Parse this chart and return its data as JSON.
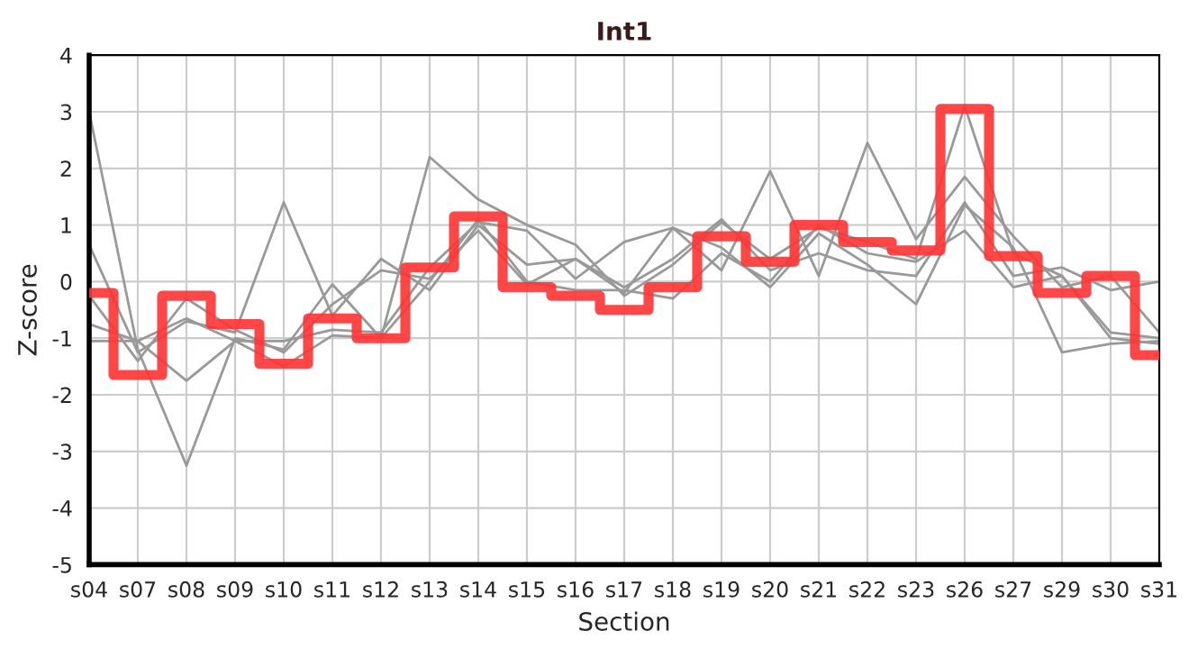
{
  "chart_data": {
    "type": "line",
    "title": "Int1",
    "xlabel": "Section",
    "ylabel": "Z-score",
    "categories": [
      "s04",
      "s07",
      "s08",
      "s09",
      "s10",
      "s11",
      "s12",
      "s13",
      "s14",
      "s15",
      "s16",
      "s17",
      "s18",
      "s19",
      "s20",
      "s21",
      "s22",
      "s23",
      "s26",
      "s27",
      "s29",
      "s30",
      "s31"
    ],
    "ylim": [
      -5,
      4
    ],
    "yticks": [
      -5,
      -4,
      -3,
      -2,
      -1,
      0,
      1,
      2,
      3,
      4
    ],
    "grid": true,
    "legend": false,
    "marker": "none",
    "series": [
      {
        "color": "#999999",
        "values": [
          3.0,
          -1.2,
          -3.25,
          -1.0,
          -1.2,
          -0.05,
          -1.0,
          2.2,
          1.45,
          1.0,
          0.65,
          -0.25,
          0.3,
          1.05,
          0.4,
          0.95,
          0.7,
          0.4,
          3.1,
          0.5,
          0.1,
          -1.0,
          -1.1
        ]
      },
      {
        "color": "#999999",
        "values": [
          0.65,
          -1.25,
          -0.7,
          -0.9,
          1.4,
          -0.6,
          0.4,
          -0.15,
          1.0,
          0.3,
          0.4,
          -0.2,
          0.95,
          0.2,
          1.95,
          0.1,
          2.45,
          0.75,
          1.85,
          0.8,
          -0.1,
          0.1,
          -0.9
        ]
      },
      {
        "color": "#999999",
        "values": [
          -0.75,
          -1.05,
          -1.75,
          -1.05,
          -1.05,
          -0.85,
          -0.9,
          0.25,
          1.05,
          0.9,
          0.05,
          0.7,
          0.95,
          0.6,
          -0.1,
          0.85,
          0.3,
          -0.4,
          1.35,
          0.6,
          -1.25,
          -1.1,
          -1.05
        ]
      },
      {
        "color": "#999999",
        "values": [
          -0.25,
          -1.4,
          -0.3,
          -0.85,
          -1.25,
          -0.4,
          0.2,
          0.05,
          0.9,
          -0.05,
          0.4,
          -0.1,
          0.4,
          1.1,
          0.2,
          0.5,
          0.2,
          0.1,
          1.4,
          0.1,
          0.25,
          -0.15,
          0.0
        ]
      },
      {
        "color": "#999999",
        "values": [
          -1.05,
          -1.05,
          -0.65,
          -1.05,
          -1.5,
          -0.95,
          -1.0,
          0.0,
          1.1,
          0.0,
          -0.15,
          -0.15,
          -0.3,
          0.5,
          0.0,
          1.0,
          0.5,
          0.35,
          0.9,
          -0.1,
          0.1,
          -0.9,
          -1.0
        ]
      },
      {
        "type": "step",
        "color": "#ff3333",
        "values": [
          -0.2,
          -1.65,
          -0.25,
          -0.75,
          -1.45,
          -0.65,
          -1.0,
          0.25,
          1.15,
          -0.1,
          -0.25,
          -0.5,
          -0.1,
          0.8,
          0.35,
          1.0,
          0.7,
          0.55,
          3.05,
          0.45,
          -0.2,
          0.1,
          -1.3
        ]
      }
    ]
  }
}
